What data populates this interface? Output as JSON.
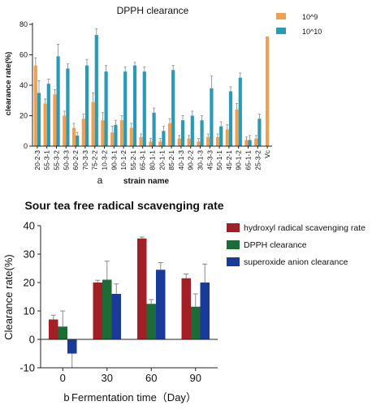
{
  "chart_data": [
    {
      "type": "bar",
      "title": "DPPH clearance",
      "xlabel": "strain name",
      "ylabel": "clearance rate(%)",
      "panel_label": "a",
      "ylim": [
        0,
        80
      ],
      "yticks": [
        "0",
        "20",
        "40",
        "60",
        "80"
      ],
      "legend_position": "top-right",
      "categories": [
        "20-2-3",
        "55-3-1",
        "55-3-2",
        "50-3-3",
        "60-2-2",
        "70-3-3",
        "75-2-2",
        "10-3-2",
        "90-3-1",
        "10-1-2",
        "55-2-1",
        "65-3-1",
        "80-1-1",
        "20-1-1",
        "85-2-1",
        "40-1-3",
        "90-2-2",
        "30-1-3",
        "45-3-3",
        "50-1-1",
        "45-2-1",
        "90-1-2",
        "65-1-1",
        "25-3-2",
        "Vc"
      ],
      "series": [
        {
          "name": "10^9",
          "color": "#F0A050",
          "values": [
            53,
            28,
            34,
            20,
            12,
            18,
            29,
            17,
            9,
            17,
            12,
            6,
            3,
            3,
            15,
            5,
            5,
            3,
            6,
            6,
            11,
            24,
            4,
            5,
            72
          ],
          "errors": [
            5,
            3,
            3,
            3,
            3,
            3,
            6,
            5,
            4,
            3,
            3,
            2,
            2,
            2,
            3,
            2,
            2,
            2,
            2,
            2,
            3,
            4,
            2,
            2,
            0
          ]
        },
        {
          "name": "10^10",
          "color": "#2A9AB5",
          "values": [
            35,
            41,
            59,
            51,
            7,
            53,
            73,
            49,
            14,
            49,
            53,
            49,
            22,
            10,
            50,
            17,
            20,
            17,
            38,
            13,
            36,
            45,
            4,
            18,
            null
          ],
          "errors": [
            8,
            3,
            8,
            3,
            2,
            4,
            4,
            4,
            3,
            3,
            2,
            3,
            3,
            3,
            3,
            3,
            3,
            3,
            8,
            3,
            3,
            3,
            3,
            3,
            0
          ]
        }
      ]
    },
    {
      "type": "bar",
      "title": "Sour tea free radical scavenging rate",
      "xlabel": "Fermentation time（Day）",
      "ylabel": "Clearance rate(%)",
      "panel_label": "b",
      "ylim": [
        -10,
        40
      ],
      "yticks": [
        "-10",
        "0",
        "10",
        "20",
        "30",
        "40"
      ],
      "legend_position": "right",
      "categories": [
        "0",
        "30",
        "60",
        "90"
      ],
      "series": [
        {
          "name": "hydroxyl radical scavenging rate",
          "color": "#A31F26",
          "values": [
            7,
            20,
            35.5,
            21.5
          ],
          "errors": [
            1.5,
            0.8,
            0.5,
            1.5
          ]
        },
        {
          "name": "DPPH clearance",
          "color": "#1D6B37",
          "values": [
            4.5,
            21,
            12.5,
            11.5
          ],
          "errors": [
            5.5,
            6.5,
            1.5,
            4.5
          ]
        },
        {
          "name": "superoxide anion clearance",
          "color": "#1A3A9A",
          "values": [
            -5,
            16,
            24.5,
            20
          ],
          "errors": [
            5,
            3.5,
            2.5,
            6.5
          ]
        }
      ]
    }
  ]
}
